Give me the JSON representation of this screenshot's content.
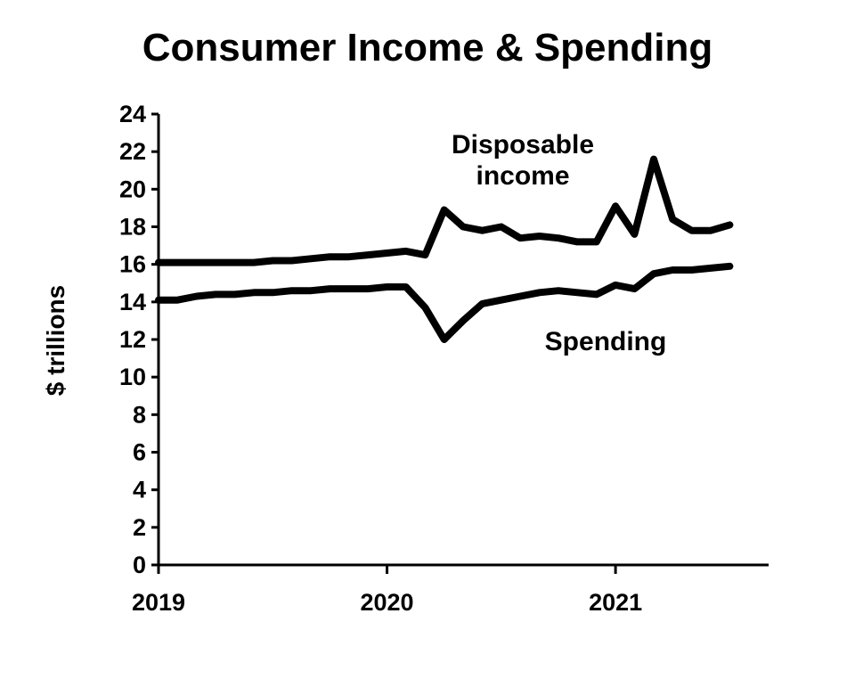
{
  "chart_data": {
    "type": "line",
    "title": "Consumer Income & Spending",
    "xlabel": "",
    "ylabel": "$ trillions",
    "ylim": [
      0,
      24
    ],
    "y_ticks": [
      "0",
      "2",
      "4",
      "6",
      "8",
      "10",
      "12",
      "14",
      "16",
      "18",
      "20",
      "22",
      "24"
    ],
    "x_ticks": [
      "2019",
      "2020",
      "2021"
    ],
    "x_tick_values": [
      2019,
      2020,
      2021
    ],
    "xlim": [
      2019,
      2021.67
    ],
    "grid": false,
    "legend": "none",
    "series": [
      {
        "name": "Disposable income",
        "label_lines": [
          "Disposable",
          "income"
        ],
        "x": [
          2019.0,
          2019.083,
          2019.167,
          2019.25,
          2019.333,
          2019.417,
          2019.5,
          2019.583,
          2019.667,
          2019.75,
          2019.833,
          2019.917,
          2020.0,
          2020.083,
          2020.167,
          2020.25,
          2020.333,
          2020.417,
          2020.5,
          2020.583,
          2020.667,
          2020.75,
          2020.833,
          2020.917,
          2021.0,
          2021.083,
          2021.167,
          2021.25,
          2021.333,
          2021.417,
          2021.5
        ],
        "values": [
          16.1,
          16.1,
          16.1,
          16.1,
          16.1,
          16.1,
          16.2,
          16.2,
          16.3,
          16.4,
          16.4,
          16.5,
          16.6,
          16.7,
          16.5,
          18.9,
          18.0,
          17.8,
          18.0,
          17.4,
          17.5,
          17.4,
          17.2,
          17.2,
          19.1,
          17.6,
          21.6,
          18.4,
          17.8,
          17.8,
          18.1
        ]
      },
      {
        "name": "Spending",
        "label_lines": [
          "Spending"
        ],
        "x": [
          2019.0,
          2019.083,
          2019.167,
          2019.25,
          2019.333,
          2019.417,
          2019.5,
          2019.583,
          2019.667,
          2019.75,
          2019.833,
          2019.917,
          2020.0,
          2020.083,
          2020.167,
          2020.25,
          2020.333,
          2020.417,
          2020.5,
          2020.583,
          2020.667,
          2020.75,
          2020.833,
          2020.917,
          2021.0,
          2021.083,
          2021.167,
          2021.25,
          2021.333,
          2021.417,
          2021.5
        ],
        "values": [
          14.1,
          14.1,
          14.3,
          14.4,
          14.4,
          14.5,
          14.5,
          14.6,
          14.6,
          14.7,
          14.7,
          14.7,
          14.8,
          14.8,
          13.7,
          12.0,
          13.0,
          13.9,
          14.1,
          14.3,
          14.5,
          14.6,
          14.5,
          14.4,
          14.9,
          14.7,
          15.5,
          15.7,
          15.7,
          15.8,
          15.9
        ]
      }
    ]
  }
}
